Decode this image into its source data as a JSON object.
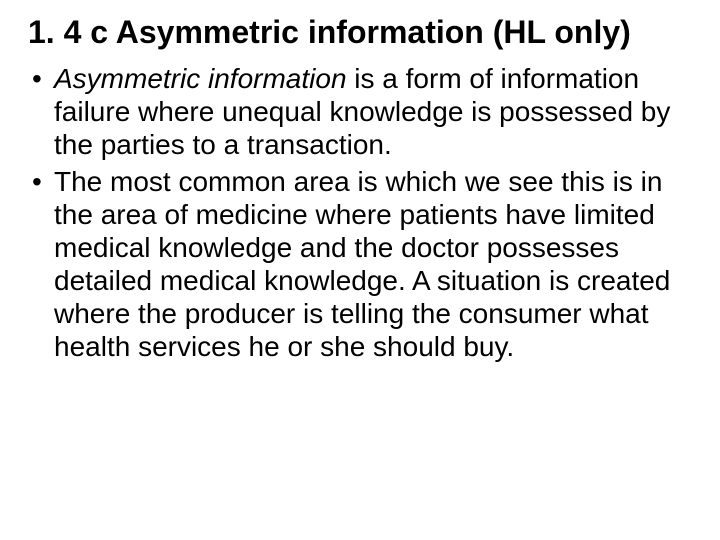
{
  "heading": "1. 4 c Asymmetric information (HL only)",
  "bullets": [
    {
      "term": "Asymmetric information",
      "rest": " is a form of information failure where unequal knowledge is possessed by the parties to a transaction."
    },
    {
      "term": "",
      "rest": "The most common area is which we see this is in the area of medicine where patients have limited medical knowledge and the doctor possesses detailed medical knowledge. A situation is created where the producer is telling the consumer what health services he or she should buy."
    }
  ],
  "colors": {
    "background": "#ffffff",
    "text": "#000000"
  },
  "typography": {
    "heading_fontsize": 32,
    "body_fontsize": 28,
    "font_family": "Arial"
  }
}
